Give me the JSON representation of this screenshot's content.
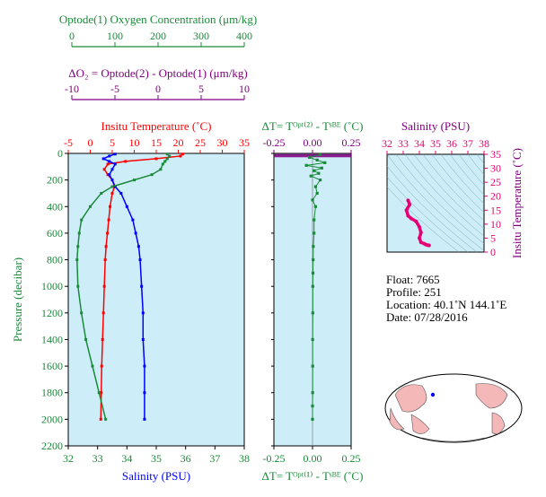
{
  "colors": {
    "green": "#1a8a3a",
    "purple": "#800080",
    "red": "#ff0000",
    "blue": "#0000ff",
    "magenta": "#e60073",
    "panel_bg": "#cdeef8"
  },
  "oxygen_axis": {
    "label": "Optode(1) Oxygen Concentration  (μm/kg)",
    "ticks": [
      0,
      100,
      200,
      300,
      400
    ],
    "range": [
      0,
      400
    ]
  },
  "delta_o2_axis": {
    "label": "ΔO₂ = Optode(2) - Optode(1)    (μm/kg)",
    "ticks": [
      -10,
      -5,
      0,
      5,
      10
    ],
    "range": [
      -10,
      10
    ]
  },
  "main_panel": {
    "temp_label": "Insitu Temperature (˚C)",
    "temp_ticks": [
      -5,
      0,
      5,
      10,
      15,
      20,
      25,
      30,
      35
    ],
    "temp_range": [
      -5,
      35
    ],
    "salinity_label": "Salinity (PSU)",
    "salinity_ticks": [
      32,
      33,
      34,
      35,
      36,
      37,
      38
    ],
    "salinity_range": [
      32,
      38
    ],
    "pressure_label": "Pressure (decibar)",
    "pressure_ticks": [
      0,
      200,
      400,
      600,
      800,
      1000,
      1200,
      1400,
      1600,
      1800,
      2000,
      2200
    ],
    "pressure_range": [
      0,
      2200
    ]
  },
  "dt_panel": {
    "top_label": "ΔT= Tᴼᵖᵗ⁽²⁾ - Tˢᴮᴱ (˚C)",
    "bottom_label": "ΔT= Tᴼᵖᵗ⁽¹⁾ - Tˢᴮᴱ (˚C)",
    "ticks": [
      "-0.25",
      "0.00",
      "0.25"
    ],
    "range": [
      -0.25,
      0.25
    ]
  },
  "ts_panel": {
    "salinity_label": "Salinity (PSU)",
    "salinity_ticks": [
      32,
      33,
      34,
      35,
      36,
      37,
      38
    ],
    "temp_label": "Insitu Temperature (˚C)",
    "temp_ticks": [
      0,
      5,
      10,
      15,
      20,
      25,
      30,
      35
    ],
    "temp_range": [
      0,
      35
    ]
  },
  "info": {
    "float": "Float:  7665",
    "profile": "Profile:  251",
    "location": "Location:  40.1˚N  144.1˚E",
    "date": "Date:  07/28/2016"
  },
  "chart_data": [
    {
      "type": "line",
      "series": [
        {
          "name": "Insitu Temperature",
          "color": "#ff0000",
          "x": [
            21.0,
            20.5,
            15.0,
            8.0,
            4.0,
            3.2,
            4.0,
            5.0,
            5.5,
            5.0,
            4.5,
            4.2,
            3.9,
            3.6,
            3.4,
            3.2,
            3.0,
            2.8,
            2.6,
            2.5,
            2.4
          ],
          "y": [
            5,
            20,
            40,
            60,
            80,
            120,
            160,
            200,
            250,
            300,
            400,
            500,
            600,
            700,
            800,
            1000,
            1200,
            1400,
            1600,
            1800,
            2000
          ]
        },
        {
          "name": "Salinity",
          "color": "#0000ff",
          "x": [
            33.6,
            33.4,
            33.2,
            33.4,
            33.6,
            33.5,
            33.4,
            33.5,
            33.6,
            33.8,
            34.0,
            34.2,
            34.3,
            34.4,
            34.45,
            34.5,
            34.55,
            34.55,
            34.6,
            34.6,
            34.6
          ],
          "y": [
            5,
            20,
            40,
            60,
            80,
            120,
            160,
            200,
            250,
            300,
            400,
            500,
            600,
            700,
            800,
            1000,
            1200,
            1400,
            1600,
            1800,
            2000
          ]
        },
        {
          "name": "Oxygen Concentration",
          "color": "#1a8a3a",
          "x": [
            225,
            230,
            225,
            220,
            215,
            210,
            190,
            150,
            100,
            75,
            50,
            30,
            25,
            22,
            20,
            22,
            30,
            40,
            55,
            70,
            85
          ],
          "y": [
            5,
            20,
            40,
            60,
            80,
            120,
            160,
            200,
            250,
            300,
            400,
            500,
            600,
            700,
            800,
            1000,
            1200,
            1400,
            1600,
            1800,
            2000
          ]
        }
      ]
    },
    {
      "type": "scatter",
      "series": [
        {
          "name": "Delta T",
          "color": "#1a8a3a",
          "x": [
            0.05,
            -0.02,
            0.03,
            0.08,
            -0.04,
            0.06,
            0.01,
            0.04,
            -0.01,
            0.05,
            0.02,
            0.03,
            0.0,
            0.02,
            0.01,
            0.01,
            0.005,
            0.004,
            0.003,
            0.002,
            0.002,
            0.001,
            0.001,
            0.001,
            0.0,
            0.0
          ],
          "y": [
            10,
            30,
            50,
            70,
            90,
            110,
            130,
            150,
            170,
            200,
            250,
            300,
            350,
            400,
            500,
            600,
            700,
            800,
            900,
            1000,
            1200,
            1400,
            1600,
            1800,
            1900,
            2000
          ]
        }
      ]
    },
    {
      "type": "scatter",
      "series": [
        {
          "name": "T-S",
          "color": "#e60073",
          "x": [
            33.3,
            33.4,
            33.2,
            33.3,
            33.5,
            33.8,
            34.0,
            34.1,
            34.0,
            34.1,
            34.3,
            34.4,
            34.5,
            34.6
          ],
          "y": [
            18.5,
            17.0,
            15.0,
            13.0,
            12.0,
            11.0,
            9.0,
            7.0,
            5.0,
            3.5,
            3.0,
            2.7,
            2.5,
            2.4
          ]
        }
      ]
    }
  ]
}
